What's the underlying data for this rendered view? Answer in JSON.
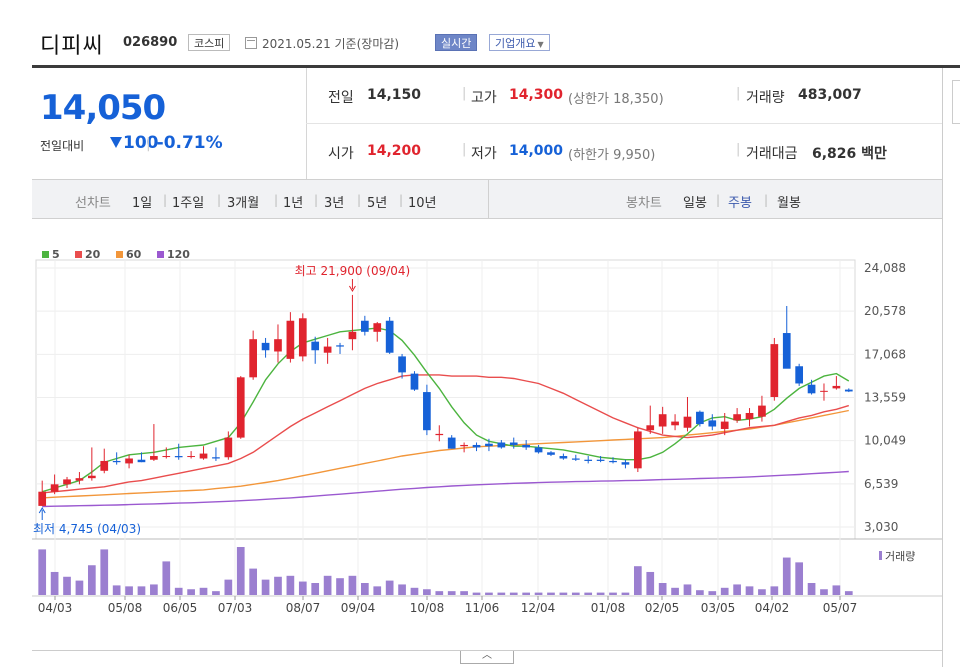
{
  "header": {
    "name": "디피씨",
    "code": "026890",
    "market": "코스피",
    "date_text": "2021.05.21 기준(장마감)",
    "realtime_label": "실시간",
    "company_info_label": "기업개요"
  },
  "price": {
    "current": "14,050",
    "change_label": "전일대비",
    "change_value": "100",
    "change_pct": "-0.71%"
  },
  "stats": {
    "prev_label": "전일",
    "prev_value": "14,150",
    "high_label": "고가",
    "high_value": "14,300",
    "upper_limit_text": "(상한가 18,350)",
    "volume_label": "거래량",
    "volume_value": "483,007",
    "open_label": "시가",
    "open_value": "14,200",
    "low_label": "저가",
    "low_value": "14,000",
    "lower_limit_text": "(하한가 9,950)",
    "amount_label": "거래대금",
    "amount_value": "6,826 백만"
  },
  "period_bar": {
    "line_label": "선차트",
    "line_periods": [
      "1일",
      "1주일",
      "3개월",
      "1년",
      "3년",
      "5년",
      "10년"
    ],
    "candle_label": "봉차트",
    "candle_periods": [
      "일봉",
      "주봉",
      "월봉"
    ],
    "active_candle": "주봉"
  },
  "colors": {
    "up": "#e0242e",
    "down": "#1661d7",
    "ma5": "#4cb43f",
    "ma20": "#e94d4d",
    "ma60": "#f2963a",
    "ma120": "#9b59d0",
    "volume": "#9b7fd0"
  },
  "chart_data": {
    "type": "candlestick",
    "legend": [
      "5",
      "20",
      "60",
      "120"
    ],
    "y_ticks": [
      "24,088",
      "20,578",
      "17,068",
      "13,559",
      "10,049",
      "6,539",
      "3,030"
    ],
    "ylim": [
      3030,
      24088
    ],
    "x_ticks": [
      "04/03",
      "05/08",
      "06/05",
      "07/03",
      "08/07",
      "09/04",
      "10/08",
      "11/06",
      "12/04",
      "01/08",
      "02/05",
      "03/05",
      "04/02",
      "05/07"
    ],
    "max_annotation": "최고 21,900 (09/04)",
    "min_annotation": "최저 4,745 (04/03)",
    "volume_label": "거래량",
    "candles": [
      [
        4745,
        6800,
        4745,
        5900
      ],
      [
        5900,
        7300,
        5700,
        6500
      ],
      [
        6500,
        7100,
        6200,
        6900
      ],
      [
        6800,
        7500,
        6500,
        7000
      ],
      [
        7000,
        9500,
        6800,
        7200
      ],
      [
        7600,
        9400,
        7400,
        8400
      ],
      [
        8400,
        9100,
        8100,
        8300
      ],
      [
        8200,
        8900,
        7800,
        8600
      ],
      [
        8500,
        9100,
        8300,
        8300
      ],
      [
        8500,
        11400,
        8400,
        8800
      ],
      [
        8800,
        9500,
        8600,
        8800
      ],
      [
        8800,
        9800,
        8500,
        8700
      ],
      [
        8800,
        9200,
        8600,
        8800
      ],
      [
        8600,
        9600,
        8500,
        9000
      ],
      [
        8700,
        9500,
        8400,
        8600
      ],
      [
        8700,
        10800,
        8500,
        10300
      ],
      [
        10300,
        15300,
        10200,
        15200
      ],
      [
        15200,
        19000,
        15000,
        18300
      ],
      [
        18000,
        18400,
        16800,
        17400
      ],
      [
        17300,
        19500,
        16400,
        18300
      ],
      [
        16700,
        20500,
        16400,
        19800
      ],
      [
        16900,
        20400,
        16500,
        20000
      ],
      [
        18100,
        18500,
        16300,
        17400
      ],
      [
        17200,
        18400,
        16300,
        17700
      ],
      [
        17800,
        18000,
        17100,
        17700
      ],
      [
        18300,
        21900,
        17400,
        18900
      ],
      [
        19800,
        20200,
        18600,
        18900
      ],
      [
        18900,
        19700,
        18100,
        19600
      ],
      [
        19800,
        20100,
        17100,
        17200
      ],
      [
        16900,
        17100,
        15100,
        15600
      ],
      [
        15500,
        15700,
        14100,
        14200
      ],
      [
        14000,
        14600,
        10500,
        10900
      ],
      [
        10500,
        11300,
        10000,
        10600
      ],
      [
        10300,
        10500,
        9400,
        9400
      ],
      [
        9600,
        9900,
        9100,
        9700
      ],
      [
        9700,
        9900,
        9200,
        9500
      ],
      [
        9800,
        10200,
        9200,
        9600
      ],
      [
        9900,
        10100,
        9400,
        9500
      ],
      [
        9900,
        10300,
        9400,
        9700
      ],
      [
        9700,
        10100,
        9300,
        9500
      ],
      [
        9500,
        9700,
        9000,
        9100
      ],
      [
        9100,
        9200,
        8800,
        8900
      ],
      [
        8800,
        9000,
        8500,
        8600
      ],
      [
        8600,
        8900,
        8400,
        8500
      ],
      [
        8500,
        8800,
        8200,
        8400
      ],
      [
        8500,
        8800,
        8300,
        8400
      ],
      [
        8400,
        8700,
        8200,
        8300
      ],
      [
        8300,
        8500,
        7800,
        8100
      ],
      [
        7800,
        11100,
        7500,
        10800
      ],
      [
        10900,
        12900,
        10600,
        11300
      ],
      [
        11200,
        12800,
        10600,
        12200
      ],
      [
        11300,
        12200,
        10900,
        11600
      ],
      [
        11100,
        13600,
        10800,
        12000
      ],
      [
        12400,
        12500,
        11200,
        11400
      ],
      [
        11700,
        12200,
        10900,
        11200
      ],
      [
        11000,
        12300,
        10500,
        11600
      ],
      [
        11700,
        12700,
        11500,
        12200
      ],
      [
        11800,
        12700,
        11200,
        12300
      ],
      [
        12000,
        13700,
        11600,
        12900
      ],
      [
        13600,
        18400,
        13300,
        17900
      ],
      [
        18800,
        21000,
        16000,
        15900
      ],
      [
        16100,
        16300,
        14500,
        14700
      ],
      [
        14600,
        15000,
        13800,
        13900
      ],
      [
        14100,
        14700,
        13300,
        14100
      ],
      [
        14300,
        15300,
        14200,
        14500
      ],
      [
        14200,
        14300,
        14000,
        14050
      ]
    ],
    "ma5": [
      5900,
      6200,
      6500,
      6800,
      7500,
      8300,
      8600,
      8900,
      9000,
      9100,
      9300,
      9500,
      9600,
      9700,
      10000,
      10300,
      11500,
      13200,
      15000,
      16300,
      17300,
      18000,
      18300,
      18600,
      18900,
      19000,
      19100,
      19200,
      19000,
      18200,
      17000,
      15600,
      14300,
      12800,
      11500,
      10500,
      10000,
      9800,
      9600,
      9600,
      9500,
      9400,
      9300,
      9100,
      8900,
      8700,
      8600,
      8500,
      8500,
      8700,
      9100,
      9800,
      10600,
      11500,
      11900,
      12000,
      11700,
      11800,
      12000,
      12600,
      13500,
      14300,
      14800,
      15300,
      15500,
      14900
    ],
    "ma20": [
      5800,
      5900,
      6000,
      6100,
      6200,
      6300,
      6500,
      6700,
      6800,
      7000,
      7200,
      7400,
      7600,
      7800,
      8000,
      8200,
      8600,
      9100,
      9800,
      10500,
      11200,
      11800,
      12300,
      12800,
      13300,
      13800,
      14300,
      14700,
      15000,
      15300,
      15400,
      15400,
      15400,
      15300,
      15300,
      15300,
      15200,
      15200,
      15100,
      14900,
      14700,
      14300,
      13900,
      13400,
      12900,
      12400,
      11900,
      11500,
      11100,
      10800,
      10500,
      10400,
      10300,
      10400,
      10500,
      10700,
      10900,
      11100,
      11200,
      11300,
      11600,
      11900,
      12100,
      12400,
      12600,
      12900
    ],
    "ma60": [
      5400,
      5450,
      5500,
      5550,
      5600,
      5650,
      5700,
      5750,
      5800,
      5850,
      5900,
      5950,
      6000,
      6050,
      6150,
      6250,
      6350,
      6500,
      6650,
      6800,
      7000,
      7200,
      7400,
      7600,
      7800,
      8000,
      8200,
      8400,
      8600,
      8800,
      8950,
      9100,
      9250,
      9350,
      9450,
      9550,
      9600,
      9650,
      9700,
      9750,
      9800,
      9850,
      9900,
      9950,
      10000,
      10050,
      10100,
      10150,
      10200,
      10250,
      10300,
      10400,
      10500,
      10600,
      10700,
      10800,
      10900,
      11000,
      11150,
      11300,
      11500,
      11700,
      11900,
      12100,
      12300,
      12500
    ],
    "ma120": [
      4700,
      4720,
      4740,
      4760,
      4780,
      4800,
      4820,
      4850,
      4880,
      4910,
      4940,
      4970,
      5000,
      5040,
      5080,
      5120,
      5170,
      5220,
      5280,
      5340,
      5400,
      5470,
      5540,
      5620,
      5700,
      5780,
      5860,
      5940,
      6020,
      6100,
      6170,
      6240,
      6300,
      6360,
      6410,
      6460,
      6500,
      6540,
      6580,
      6610,
      6640,
      6670,
      6700,
      6720,
      6740,
      6760,
      6780,
      6800,
      6820,
      6850,
      6880,
      6910,
      6940,
      6970,
      7000,
      7030,
      7060,
      7100,
      7150,
      7200,
      7250,
      7300,
      7360,
      7420,
      7480,
      7540
    ],
    "volumes": [
      95,
      48,
      38,
      30,
      62,
      95,
      20,
      18,
      18,
      22,
      70,
      15,
      12,
      15,
      8,
      32,
      100,
      55,
      32,
      38,
      40,
      28,
      25,
      40,
      35,
      40,
      25,
      18,
      30,
      22,
      15,
      12,
      8,
      8,
      8,
      5,
      5,
      5,
      5,
      5,
      5,
      5,
      5,
      5,
      5,
      5,
      5,
      5,
      60,
      48,
      25,
      15,
      22,
      10,
      8,
      15,
      22,
      18,
      12,
      18,
      78,
      68,
      25,
      12,
      20,
      8
    ]
  }
}
